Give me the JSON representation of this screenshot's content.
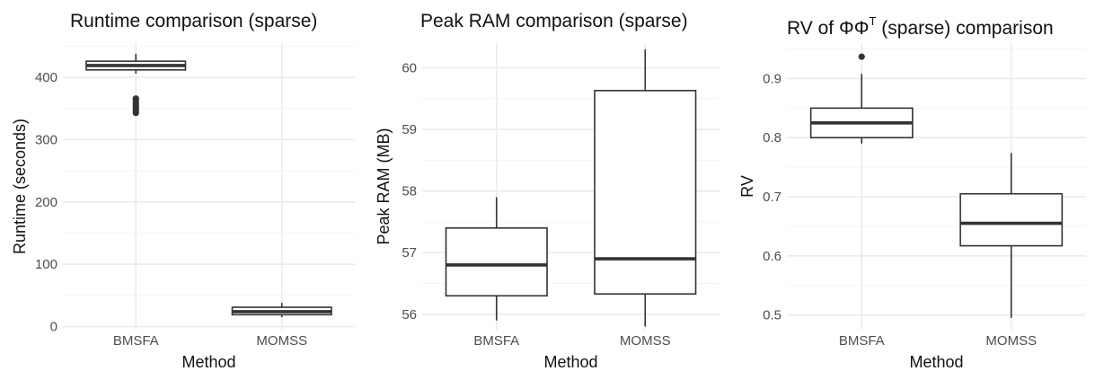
{
  "chart_data": [
    {
      "type": "boxplot",
      "title": "Runtime comparison (sparse)",
      "xlabel": "Method",
      "ylabel": "Runtime (seconds)",
      "categories": [
        "BMSFA",
        "MOMSS"
      ],
      "ylim": [
        -5,
        455
      ],
      "yticks": [
        0,
        100,
        200,
        300,
        400
      ],
      "grid": true,
      "boxes": [
        {
          "category": "BMSFA",
          "q1": 412,
          "median": 419,
          "q3": 426,
          "whisker_low": 406,
          "whisker_high": 438,
          "outliers": [
            343,
            347,
            351,
            355,
            359,
            363,
            366
          ]
        },
        {
          "category": "MOMSS",
          "q1": 19,
          "median": 24,
          "q3": 31,
          "whisker_low": 15,
          "whisker_high": 38,
          "outliers": []
        }
      ]
    },
    {
      "type": "boxplot",
      "title": "Peak RAM comparison (sparse)",
      "xlabel": "Method",
      "ylabel": "Peak RAM (MB)",
      "categories": [
        "BMSFA",
        "MOMSS"
      ],
      "ylim": [
        55.75,
        60.4
      ],
      "yticks": [
        56,
        57,
        58,
        59,
        60
      ],
      "grid": true,
      "boxes": [
        {
          "category": "BMSFA",
          "q1": 56.3,
          "median": 56.8,
          "q3": 57.4,
          "whisker_low": 55.9,
          "whisker_high": 57.9,
          "outliers": []
        },
        {
          "category": "MOMSS",
          "q1": 56.33,
          "median": 56.9,
          "q3": 59.63,
          "whisker_low": 55.8,
          "whisker_high": 60.3,
          "outliers": []
        }
      ]
    },
    {
      "type": "boxplot",
      "title_main": "RV of ΦΦ",
      "title_sup": "T",
      "title_rest": " (sparse) comparison",
      "xlabel": "Method",
      "ylabel": "RV",
      "categories": [
        "BMSFA",
        "MOMSS"
      ],
      "ylim": [
        0.475,
        0.96
      ],
      "yticks": [
        0.5,
        0.6,
        0.7,
        0.8,
        0.9
      ],
      "grid": true,
      "boxes": [
        {
          "category": "BMSFA",
          "q1": 0.8,
          "median": 0.825,
          "q3": 0.85,
          "whisker_low": 0.79,
          "whisker_high": 0.908,
          "outliers": [
            0.937
          ]
        },
        {
          "category": "MOMSS",
          "q1": 0.617,
          "median": 0.655,
          "q3": 0.705,
          "whisker_low": 0.495,
          "whisker_high": 0.774,
          "outliers": []
        }
      ]
    }
  ]
}
